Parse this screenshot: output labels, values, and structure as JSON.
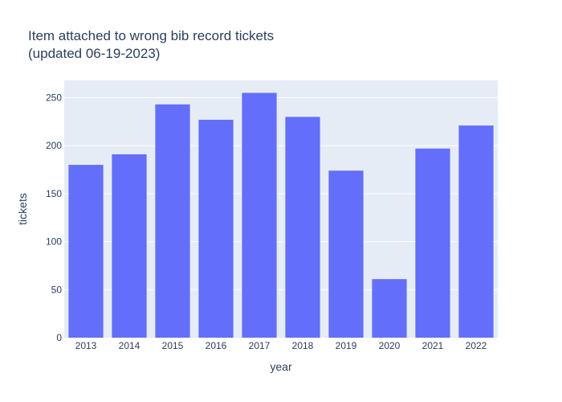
{
  "chart_data": {
    "type": "bar",
    "title": "Item attached to wrong bib record tickets\n(updated 06-19-2023)",
    "xlabel": "year",
    "ylabel": "tickets",
    "categories": [
      "2013",
      "2014",
      "2015",
      "2016",
      "2017",
      "2018",
      "2019",
      "2020",
      "2021",
      "2022"
    ],
    "values": [
      180,
      191,
      243,
      227,
      255,
      230,
      174,
      61,
      197,
      221
    ],
    "ylim": [
      0,
      268
    ],
    "yticks": [
      0,
      50,
      100,
      150,
      200,
      250
    ],
    "grid": true,
    "colors": {
      "bar": "#636efa",
      "plot_bg": "#e5ecf6",
      "grid": "#ffffff",
      "text": "#2a3f5f"
    }
  }
}
